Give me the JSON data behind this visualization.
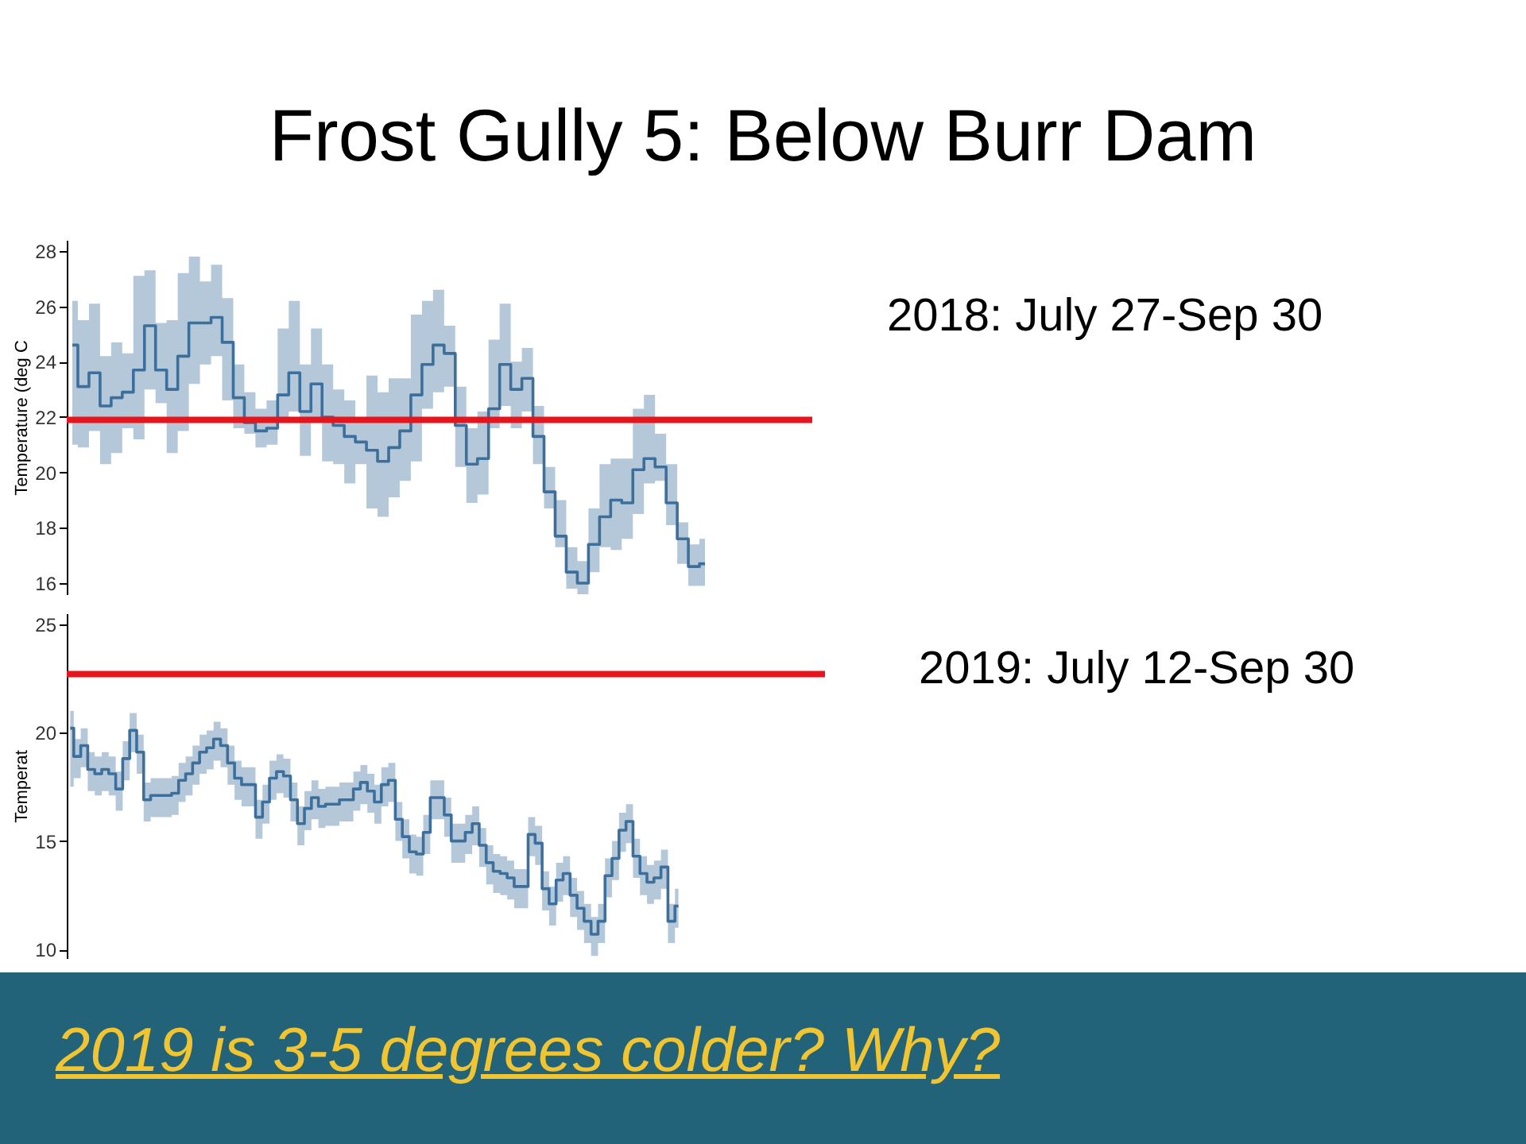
{
  "chart_data": [
    {
      "type": "step",
      "title": "Frost Gully 5: Below Burr Dam",
      "ylabel": "Temperature (deg C",
      "tick_labels": "y",
      "categories": [
        null,
        null,
        null,
        null,
        null,
        null,
        null,
        null,
        null,
        null,
        null,
        null,
        null,
        null,
        null,
        null,
        null,
        null,
        null,
        null,
        null,
        null,
        null,
        null,
        null,
        null,
        null,
        null,
        null,
        null,
        null,
        null,
        null,
        null,
        null,
        null,
        null,
        null,
        null,
        null,
        null,
        null,
        null,
        null,
        null,
        null,
        null,
        null,
        null,
        null,
        null,
        null,
        null,
        null,
        null,
        null,
        null,
        null
      ],
      "series": [
        {
          "color": "#3d6f9c",
          "values": [
            24.6,
            23.1,
            23.6,
            22.4,
            22.7,
            22.9,
            23.7,
            25.3,
            23.7,
            23.0,
            24.2,
            25.4,
            25.4,
            25.6,
            24.7,
            22.7,
            21.8,
            21.5,
            21.6,
            22.8,
            23.6,
            22.2,
            23.2,
            22.0,
            21.7,
            21.3,
            21.1,
            20.8,
            20.4,
            20.9,
            21.5,
            22.8,
            23.9,
            24.6,
            24.3,
            21.7,
            20.3,
            20.5,
            22.3,
            23.9,
            23.0,
            23.4,
            21.3,
            19.3,
            17.7,
            16.4,
            16.0,
            17.4,
            18.4,
            19.0,
            18.9,
            20.1,
            20.5,
            20.2,
            18.9,
            17.6,
            16.6,
            16.7
          ],
          "lower": [
            21.0,
            20.9,
            21.5,
            20.3,
            20.7,
            21.6,
            21.2,
            23.0,
            22.5,
            20.7,
            21.5,
            23.2,
            23.9,
            24.2,
            22.6,
            21.6,
            21.4,
            20.9,
            21.0,
            21.8,
            22.2,
            20.6,
            22.0,
            20.4,
            20.3,
            19.6,
            20.3,
            18.7,
            18.4,
            19.1,
            19.7,
            20.4,
            22.3,
            22.9,
            23.1,
            20.2,
            18.9,
            19.2,
            21.6,
            22.4,
            21.6,
            22.2,
            20.3,
            18.7,
            17.3,
            15.8,
            15.6,
            16.4,
            17.3,
            17.2,
            17.6,
            18.5,
            19.6,
            19.7,
            18.1,
            16.7,
            15.9,
            15.9
          ],
          "upper": [
            26.2,
            25.5,
            26.1,
            24.2,
            24.7,
            24.3,
            27.1,
            27.3,
            25.4,
            25.5,
            27.2,
            27.8,
            26.9,
            27.5,
            26.3,
            23.9,
            22.9,
            22.3,
            22.6,
            25.2,
            26.2,
            23.9,
            25.2,
            23.9,
            23.0,
            22.6,
            21.8,
            23.5,
            22.9,
            23.4,
            23.4,
            25.7,
            26.2,
            26.6,
            25.3,
            23.1,
            21.6,
            22.2,
            24.8,
            26.1,
            24.0,
            24.5,
            22.4,
            20.2,
            19.0,
            17.3,
            16.8,
            18.7,
            20.3,
            20.5,
            20.5,
            22.3,
            22.8,
            21.4,
            20.3,
            18.2,
            17.4,
            17.6
          ]
        }
      ],
      "ylim": [
        15.6,
        28.4
      ],
      "yticks": [
        16,
        18,
        20,
        22,
        24,
        26,
        28
      ],
      "ref_lines": [
        {
          "axis": "y",
          "value": 21.9,
          "color": "#e8141b"
        }
      ],
      "annotations": [
        "2018: July 27-Sep 30"
      ]
    },
    {
      "type": "step",
      "ylabel": "Temperat",
      "tick_labels": "y",
      "categories": [
        null,
        null,
        null,
        null,
        null,
        null,
        null,
        null,
        null,
        null,
        null,
        null,
        null,
        null,
        null,
        null,
        null,
        null,
        null,
        null,
        null,
        null,
        null,
        null,
        null,
        null,
        null,
        null,
        null,
        null,
        null,
        null,
        null,
        null,
        null,
        null,
        null,
        null,
        null,
        null,
        null,
        null,
        null,
        null,
        null,
        null,
        null,
        null,
        null,
        null,
        null,
        null,
        null,
        null,
        null,
        null,
        null,
        null,
        null,
        null,
        null,
        null,
        null,
        null,
        null,
        null,
        null,
        null,
        null,
        null,
        null,
        null,
        null,
        null,
        null,
        null,
        null,
        null,
        null,
        null,
        null,
        null,
        null,
        null,
        null,
        null,
        null,
        null
      ],
      "series": [
        {
          "color": "#3d6f9c",
          "values": [
            20.2,
            18.9,
            19.4,
            18.3,
            18.1,
            18.3,
            18.1,
            17.4,
            18.8,
            20.1,
            19.1,
            16.9,
            17.1,
            17.1,
            17.1,
            17.2,
            17.8,
            18.1,
            18.6,
            19.1,
            19.3,
            19.7,
            19.4,
            18.6,
            17.9,
            17.6,
            17.6,
            16.1,
            16.8,
            17.9,
            18.2,
            18.0,
            16.9,
            15.8,
            16.5,
            17.0,
            16.6,
            16.7,
            16.7,
            16.9,
            16.9,
            17.4,
            17.7,
            17.3,
            16.8,
            17.6,
            17.8,
            16.0,
            15.2,
            14.5,
            14.4,
            15.4,
            17.0,
            17.0,
            16.2,
            15.0,
            15.0,
            15.4,
            15.8,
            14.8,
            14.0,
            13.6,
            13.5,
            13.3,
            12.9,
            12.9,
            15.3,
            14.9,
            12.8,
            12.1,
            13.2,
            13.5,
            12.5,
            11.9,
            11.3,
            10.7,
            11.3,
            13.4,
            14.2,
            15.5,
            15.9,
            14.3,
            13.5,
            13.1,
            13.3,
            13.8,
            11.3,
            12.0
          ],
          "lower": [
            17.5,
            17.9,
            18.4,
            17.3,
            17.1,
            17.3,
            17.1,
            16.4,
            17.8,
            19.1,
            18.1,
            15.9,
            16.1,
            16.1,
            16.1,
            16.2,
            16.8,
            17.1,
            17.6,
            18.1,
            18.3,
            18.7,
            18.4,
            17.6,
            16.9,
            16.6,
            16.6,
            15.1,
            15.8,
            16.9,
            17.2,
            17.0,
            15.9,
            14.8,
            15.5,
            16.0,
            15.6,
            15.7,
            15.7,
            15.9,
            15.9,
            16.4,
            16.7,
            16.3,
            15.8,
            16.6,
            16.8,
            15.0,
            14.2,
            13.5,
            13.4,
            14.4,
            16.0,
            16.0,
            15.2,
            14.0,
            14.0,
            14.4,
            14.8,
            13.8,
            13.0,
            12.6,
            12.5,
            12.3,
            11.9,
            11.9,
            14.3,
            13.9,
            11.8,
            11.1,
            12.2,
            12.5,
            11.5,
            10.9,
            10.3,
            9.7,
            10.3,
            12.4,
            13.2,
            14.5,
            14.9,
            13.3,
            12.5,
            12.1,
            12.3,
            12.8,
            10.3,
            11.0
          ],
          "upper": [
            21.0,
            19.7,
            20.2,
            19.1,
            18.9,
            19.1,
            18.9,
            18.2,
            19.6,
            20.9,
            19.9,
            17.7,
            17.9,
            17.9,
            17.9,
            18.0,
            18.6,
            18.9,
            19.4,
            19.9,
            20.1,
            20.5,
            20.2,
            19.4,
            18.7,
            18.4,
            18.4,
            16.9,
            17.6,
            18.7,
            19.0,
            18.8,
            17.7,
            16.6,
            17.3,
            17.8,
            17.4,
            17.5,
            17.5,
            17.7,
            17.7,
            18.2,
            18.5,
            18.1,
            17.6,
            18.4,
            18.6,
            16.8,
            16.0,
            15.3,
            15.2,
            16.2,
            17.8,
            17.8,
            17.0,
            15.8,
            15.8,
            16.2,
            16.6,
            15.6,
            14.8,
            14.4,
            14.3,
            14.1,
            13.7,
            13.7,
            16.1,
            15.7,
            13.6,
            12.9,
            14.0,
            14.3,
            13.3,
            12.7,
            12.1,
            11.5,
            12.1,
            14.2,
            15.0,
            16.3,
            16.7,
            15.1,
            14.3,
            13.9,
            14.1,
            14.6,
            12.1,
            12.8
          ]
        }
      ],
      "ylim": [
        9.6,
        25.5
      ],
      "yticks": [
        10,
        15,
        20,
        25
      ],
      "ref_lines": [
        {
          "axis": "y",
          "value": 22.7,
          "color": "#e8141b"
        }
      ],
      "annotations": [
        "2019: July 12-Sep 30",
        "2019 is 3-5 degrees colder? Why?"
      ]
    }
  ]
}
